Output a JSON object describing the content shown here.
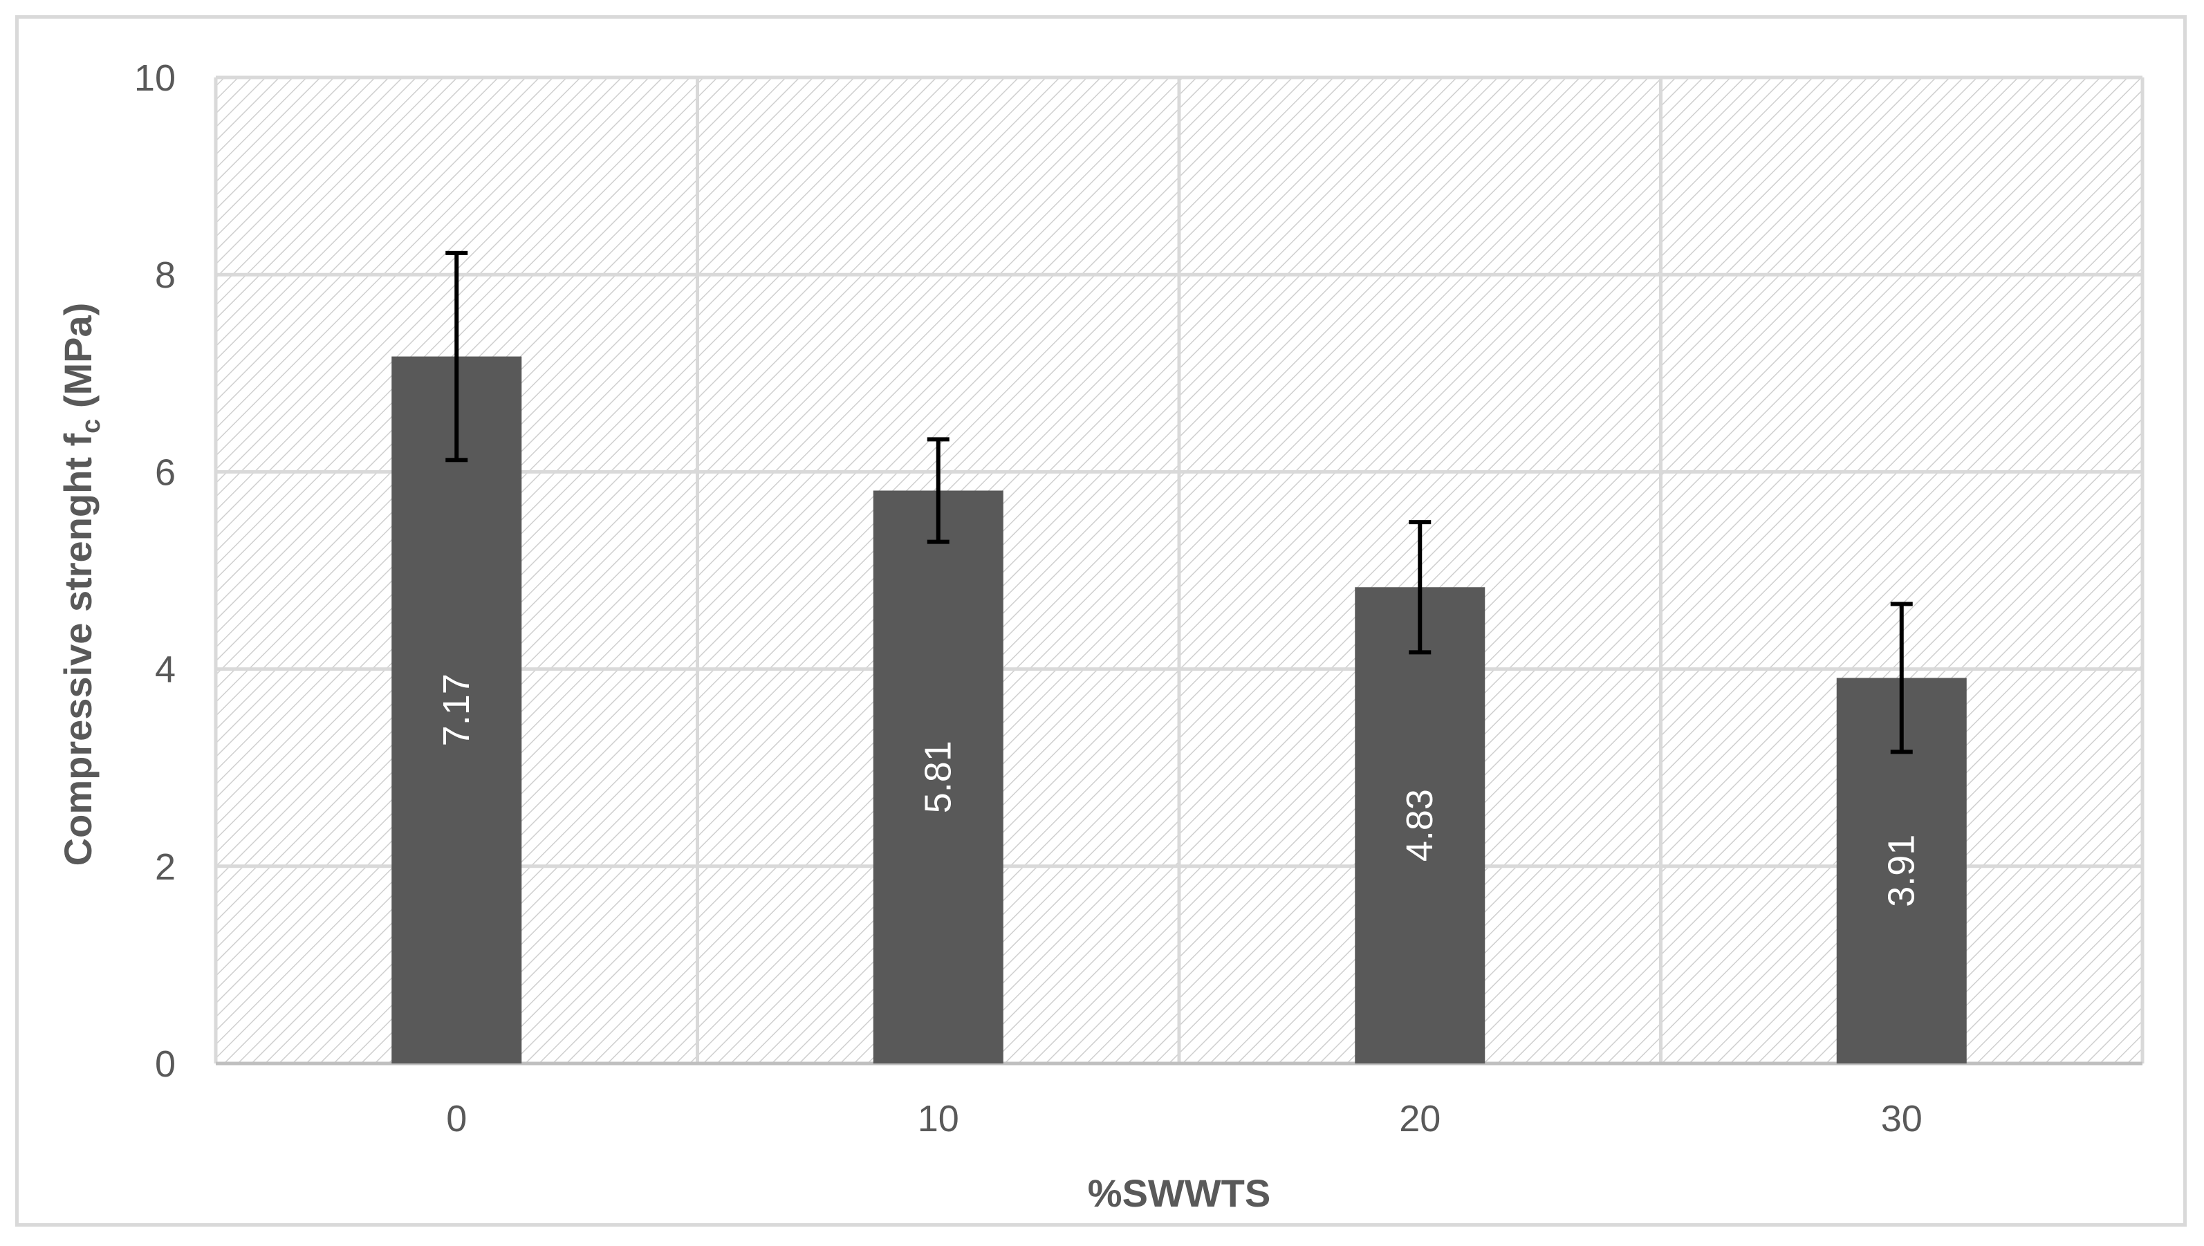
{
  "chart_data": {
    "type": "bar",
    "categories": [
      "0",
      "10",
      "20",
      "30"
    ],
    "values": [
      7.17,
      5.81,
      4.83,
      3.91
    ],
    "error_plus": [
      1.05,
      0.52,
      0.66,
      0.75
    ],
    "error_minus": [
      1.05,
      0.52,
      0.66,
      0.75
    ],
    "data_labels": [
      "7.17",
      "5.81",
      "4.83",
      "3.91"
    ],
    "xlabel": "%SWWTS",
    "ylabel_main": "Compressive strenght f",
    "ylabel_sub": "c",
    "ylabel_unit": " (MPa)",
    "ylim": [
      0,
      10
    ],
    "yticks": [
      "0",
      "2",
      "4",
      "6",
      "8",
      "10"
    ],
    "ytick_values": [
      0,
      2,
      4,
      6,
      8,
      10
    ],
    "grid": true,
    "plot_fill": "hatched",
    "colors": {
      "bar": "#595959",
      "error_bar": "#000000",
      "grid": "#d9d9d9",
      "hatch": "#cfcfcf",
      "text": "#595959",
      "data_label": "#ffffff"
    }
  }
}
